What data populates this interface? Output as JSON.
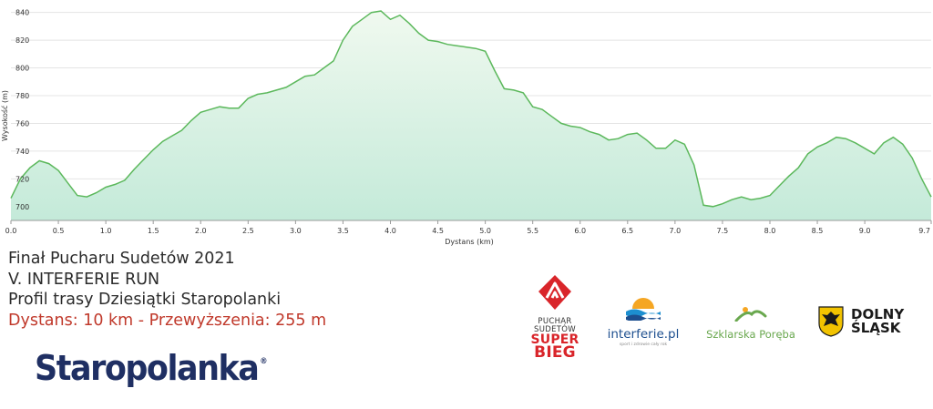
{
  "chart_data": {
    "type": "area",
    "xlabel": "Dystans  (km)",
    "ylabel": "Wysokość (m)",
    "xlim": [
      0,
      9.7
    ],
    "ylim": [
      690,
      847
    ],
    "x_ticks": [
      "0.0",
      "0.5",
      "1.0",
      "1.5",
      "2.0",
      "2.5",
      "3.0",
      "3.5",
      "4.0",
      "4.5",
      "5.0",
      "5.5",
      "6.0",
      "6.5",
      "7.0",
      "7.5",
      "8.0",
      "8.5",
      "9.0",
      "9.7"
    ],
    "y_ticks": [
      "700",
      "720",
      "740",
      "760",
      "780",
      "800",
      "820",
      "840"
    ],
    "grid": true,
    "line_color": "#5cb85c",
    "fill_top": "#f0f9ef",
    "fill_bottom": "#c4ead9",
    "x": [
      0.0,
      0.1,
      0.2,
      0.3,
      0.4,
      0.5,
      0.6,
      0.7,
      0.8,
      0.9,
      1.0,
      1.1,
      1.2,
      1.3,
      1.4,
      1.5,
      1.6,
      1.7,
      1.8,
      1.9,
      2.0,
      2.1,
      2.2,
      2.3,
      2.4,
      2.5,
      2.6,
      2.7,
      2.8,
      2.9,
      3.0,
      3.1,
      3.2,
      3.3,
      3.4,
      3.5,
      3.6,
      3.7,
      3.8,
      3.9,
      4.0,
      4.1,
      4.2,
      4.3,
      4.4,
      4.5,
      4.6,
      4.7,
      4.8,
      4.9,
      5.0,
      5.1,
      5.2,
      5.3,
      5.4,
      5.5,
      5.6,
      5.7,
      5.8,
      5.9,
      6.0,
      6.1,
      6.2,
      6.3,
      6.4,
      6.5,
      6.6,
      6.7,
      6.8,
      6.9,
      7.0,
      7.1,
      7.2,
      7.3,
      7.4,
      7.5,
      7.6,
      7.7,
      7.8,
      7.9,
      8.0,
      8.1,
      8.2,
      8.3,
      8.4,
      8.5,
      8.6,
      8.7,
      8.8,
      8.9,
      9.0,
      9.1,
      9.2,
      9.3,
      9.4,
      9.5,
      9.6,
      9.7
    ],
    "y": [
      706,
      720,
      728,
      733,
      731,
      726,
      717,
      708,
      707,
      710,
      714,
      716,
      719,
      727,
      734,
      741,
      747,
      751,
      755,
      762,
      768,
      770,
      772,
      771,
      771,
      778,
      781,
      782,
      784,
      786,
      790,
      794,
      795,
      800,
      805,
      820,
      830,
      835,
      840,
      841,
      835,
      838,
      832,
      825,
      820,
      819,
      817,
      816,
      815,
      814,
      812,
      798,
      785,
      784,
      782,
      772,
      770,
      765,
      760,
      758,
      757,
      754,
      752,
      748,
      749,
      752,
      753,
      748,
      742,
      742,
      748,
      745,
      730,
      701,
      700,
      702,
      705,
      707,
      705,
      706,
      708,
      715,
      722,
      728,
      738,
      743,
      746,
      750,
      749,
      746,
      742,
      738,
      746,
      750,
      745,
      735,
      720,
      707
    ]
  },
  "info": {
    "line1": "Finał Pucharu Sudetów 2021",
    "line2": "V. INTERFERIE RUN",
    "line3": "Profil trasy Dziesiątki Staropolanki",
    "line4": "Dystans: 10 km - Przewyższenia: 255 m"
  },
  "brand": {
    "name": "Staropolanka",
    "mark": "®"
  },
  "logos": {
    "puchar": {
      "line1": "PUCHAR",
      "line2": "SUDETÓW",
      "line3": "SUPER",
      "line4": "BIEG"
    },
    "interferie": {
      "name": "interferie.pl",
      "tagline": "sport i zdrowie cały rok"
    },
    "szklarska": {
      "name": "Szklarska Poręba"
    },
    "dolny": {
      "line1": "DOLNY",
      "line2": "ŚLĄSK"
    }
  }
}
